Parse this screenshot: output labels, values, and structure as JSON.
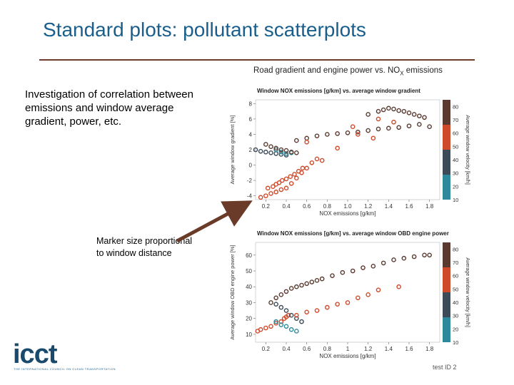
{
  "slide": {
    "title": "Standard plots:  pollutant scatterplots",
    "bullet": "Investigation of correlation between emissions and window average gradient, power, etc.",
    "marker_note": "Marker size proportional to window distance",
    "main_chart_title_prefix": "Road gradient and engine power vs. NO",
    "main_chart_title_sub": "X",
    "main_chart_title_suffix": " emissions",
    "logo": "icct",
    "logo_tagline": "THE INTERNATIONAL COUNCIL ON CLEAN TRANSPORTATION",
    "page_number": "test ID 2"
  },
  "colors": {
    "title": "#1a5f8c",
    "rule": "#6b3b2a",
    "arrow": "#6b3b2a",
    "colorbar": [
      "#2e8a9a",
      "#3d4a57",
      "#cf4a2a",
      "#5a3a30"
    ]
  },
  "chart_data": [
    {
      "type": "scatter",
      "title": "Window NOX emissions [g/km] vs. average window gradient",
      "xlabel": "NOX emissions [g/km]",
      "ylabel": "Average window gradient [%]",
      "colorbar_label": "Average window velocity [km/h]",
      "xticks": [
        "0.2",
        "0.4",
        "0.6",
        "0.8",
        "1.0",
        "1.2",
        "1.4",
        "1.6",
        "1.8"
      ],
      "yticks": [
        "-4",
        "-2",
        "0",
        "2",
        "4",
        "6",
        "8"
      ],
      "colorbar_ticks": [
        "10",
        "20",
        "30",
        "40",
        "50",
        "60",
        "70",
        "80"
      ],
      "xlim": [
        0.1,
        1.9
      ],
      "ylim": [
        -4.5,
        8.5
      ],
      "clim": [
        10,
        85
      ],
      "series": [
        {
          "x": [
            0.15,
            0.2,
            0.25,
            0.3,
            0.35,
            0.4,
            0.45,
            0.5,
            0.55,
            0.6,
            0.65,
            0.7
          ],
          "y": [
            -4.2,
            -4.0,
            -3.7,
            -3.5,
            -3.2,
            -3.0,
            -2.4,
            -1.7,
            -1.0,
            -0.4,
            0.3,
            0.8
          ],
          "v": [
            60,
            60,
            62,
            62,
            63,
            63,
            62,
            61,
            61,
            60,
            60,
            58
          ]
        },
        {
          "x": [
            0.22,
            0.27,
            0.3,
            0.33,
            0.36,
            0.4,
            0.44,
            0.48,
            0.52,
            0.56
          ],
          "y": [
            -3.0,
            -2.8,
            -2.5,
            -2.3,
            -2.0,
            -1.8,
            -1.5,
            -1.2,
            -0.8,
            -0.4
          ],
          "v": [
            58,
            58,
            59,
            59,
            60,
            60,
            60,
            60,
            61,
            61
          ]
        },
        {
          "x": [
            0.1,
            0.15,
            0.2,
            0.25,
            0.3,
            0.35,
            0.4
          ],
          "y": [
            2.0,
            1.8,
            1.7,
            1.6,
            1.5,
            1.4,
            1.3
          ],
          "v": [
            30,
            32,
            34,
            34,
            35,
            36,
            35
          ]
        },
        {
          "x": [
            0.3,
            0.35,
            0.4,
            0.45
          ],
          "y": [
            2.0,
            1.7,
            1.5,
            1.6
          ],
          "v": [
            15,
            15,
            16,
            16
          ]
        },
        {
          "x": [
            0.2,
            0.25,
            0.3,
            0.35,
            0.4,
            0.45,
            0.5
          ],
          "y": [
            2.7,
            2.4,
            2.2,
            2.0,
            1.9,
            1.7,
            1.6
          ],
          "v": [
            80,
            78,
            76,
            76,
            74,
            72,
            70
          ]
        },
        {
          "x": [
            0.5,
            0.6,
            0.7,
            0.8,
            0.9,
            1.0,
            1.1,
            1.2,
            1.3,
            1.4,
            1.5,
            1.6,
            1.7,
            1.8
          ],
          "y": [
            3.2,
            3.5,
            3.8,
            4.0,
            4.1,
            4.2,
            4.3,
            4.5,
            4.7,
            4.8,
            4.9,
            5.1,
            5.3,
            5.0
          ],
          "v": [
            75,
            75,
            76,
            76,
            77,
            77,
            78,
            78,
            78,
            79,
            79,
            80,
            80,
            80
          ]
        },
        {
          "x": [
            1.2,
            1.3,
            1.35,
            1.4,
            1.45,
            1.5,
            1.55,
            1.6,
            1.65,
            1.7,
            1.75
          ],
          "y": [
            6.6,
            7.0,
            7.2,
            7.4,
            7.3,
            7.1,
            7.0,
            6.8,
            6.6,
            6.4,
            6.2
          ],
          "v": [
            72,
            72,
            74,
            75,
            76,
            77,
            78,
            79,
            80,
            80,
            80
          ]
        },
        {
          "x": [
            0.6,
            0.75,
            0.9,
            1.05,
            1.1,
            1.25,
            1.3,
            1.45
          ],
          "y": [
            3.0,
            0.6,
            2.2,
            5.0,
            4.0,
            3.5,
            6.0,
            5.6
          ],
          "v": [
            62,
            62,
            62,
            62,
            62,
            62,
            62,
            62
          ]
        }
      ]
    },
    {
      "type": "scatter",
      "title": "Window NOX emissions [g/km] vs. average window OBD engine power",
      "xlabel": "NOX emissions [g/km]",
      "ylabel": "Average window OBD engine power [%]",
      "colorbar_label": "Average window velocity [km/h]",
      "xticks": [
        "0.2",
        "0.4",
        "0.6",
        "0.8",
        "1",
        "1.2",
        "1.4",
        "1.6",
        "1.8"
      ],
      "yticks": [
        "10",
        "20",
        "30",
        "40",
        "50",
        "60"
      ],
      "colorbar_ticks": [
        "10",
        "20",
        "30",
        "40",
        "50",
        "60",
        "70",
        "80"
      ],
      "xlim": [
        0.1,
        1.9
      ],
      "ylim": [
        5,
        68
      ],
      "clim": [
        10,
        85
      ],
      "series": [
        {
          "x": [
            0.12,
            0.15,
            0.2,
            0.25,
            0.3,
            0.35,
            0.38,
            0.4,
            0.42
          ],
          "y": [
            12,
            13,
            14,
            15,
            17,
            18,
            20,
            21,
            22
          ],
          "v": [
            60,
            62,
            62,
            61,
            61,
            60,
            60,
            60,
            58
          ]
        },
        {
          "x": [
            0.3,
            0.35,
            0.4,
            0.45,
            0.5,
            0.55
          ],
          "y": [
            29,
            27,
            25,
            22,
            20,
            18
          ],
          "v": [
            35,
            35,
            34,
            33,
            32,
            30
          ]
        },
        {
          "x": [
            0.3,
            0.35,
            0.4,
            0.45,
            0.5
          ],
          "y": [
            18,
            16,
            15,
            13,
            12
          ],
          "v": [
            15,
            15,
            16,
            16,
            17
          ]
        },
        {
          "x": [
            0.25,
            0.3,
            0.35,
            0.4,
            0.45,
            0.5,
            0.55,
            0.6,
            0.65,
            0.7
          ],
          "y": [
            30,
            33,
            35,
            37,
            39,
            40,
            41,
            42,
            43,
            44
          ],
          "v": [
            78,
            78,
            77,
            76,
            76,
            75,
            75,
            74,
            74,
            74
          ]
        },
        {
          "x": [
            0.75,
            0.85,
            0.95,
            1.05,
            1.15,
            1.25,
            1.35,
            1.45,
            1.55,
            1.65,
            1.75,
            1.8
          ],
          "y": [
            45,
            47,
            49,
            50,
            52,
            53,
            55,
            57,
            58,
            59,
            60,
            60
          ],
          "v": [
            75,
            76,
            76,
            77,
            78,
            78,
            79,
            79,
            80,
            80,
            80,
            80
          ]
        },
        {
          "x": [
            0.5,
            0.6,
            0.7,
            0.8,
            0.9,
            1.0,
            1.1,
            1.2,
            1.3,
            1.5
          ],
          "y": [
            22,
            24,
            25,
            27,
            29,
            30,
            33,
            35,
            38,
            40
          ],
          "v": [
            62,
            62,
            62,
            62,
            62,
            62,
            62,
            62,
            62,
            62
          ]
        }
      ]
    }
  ]
}
